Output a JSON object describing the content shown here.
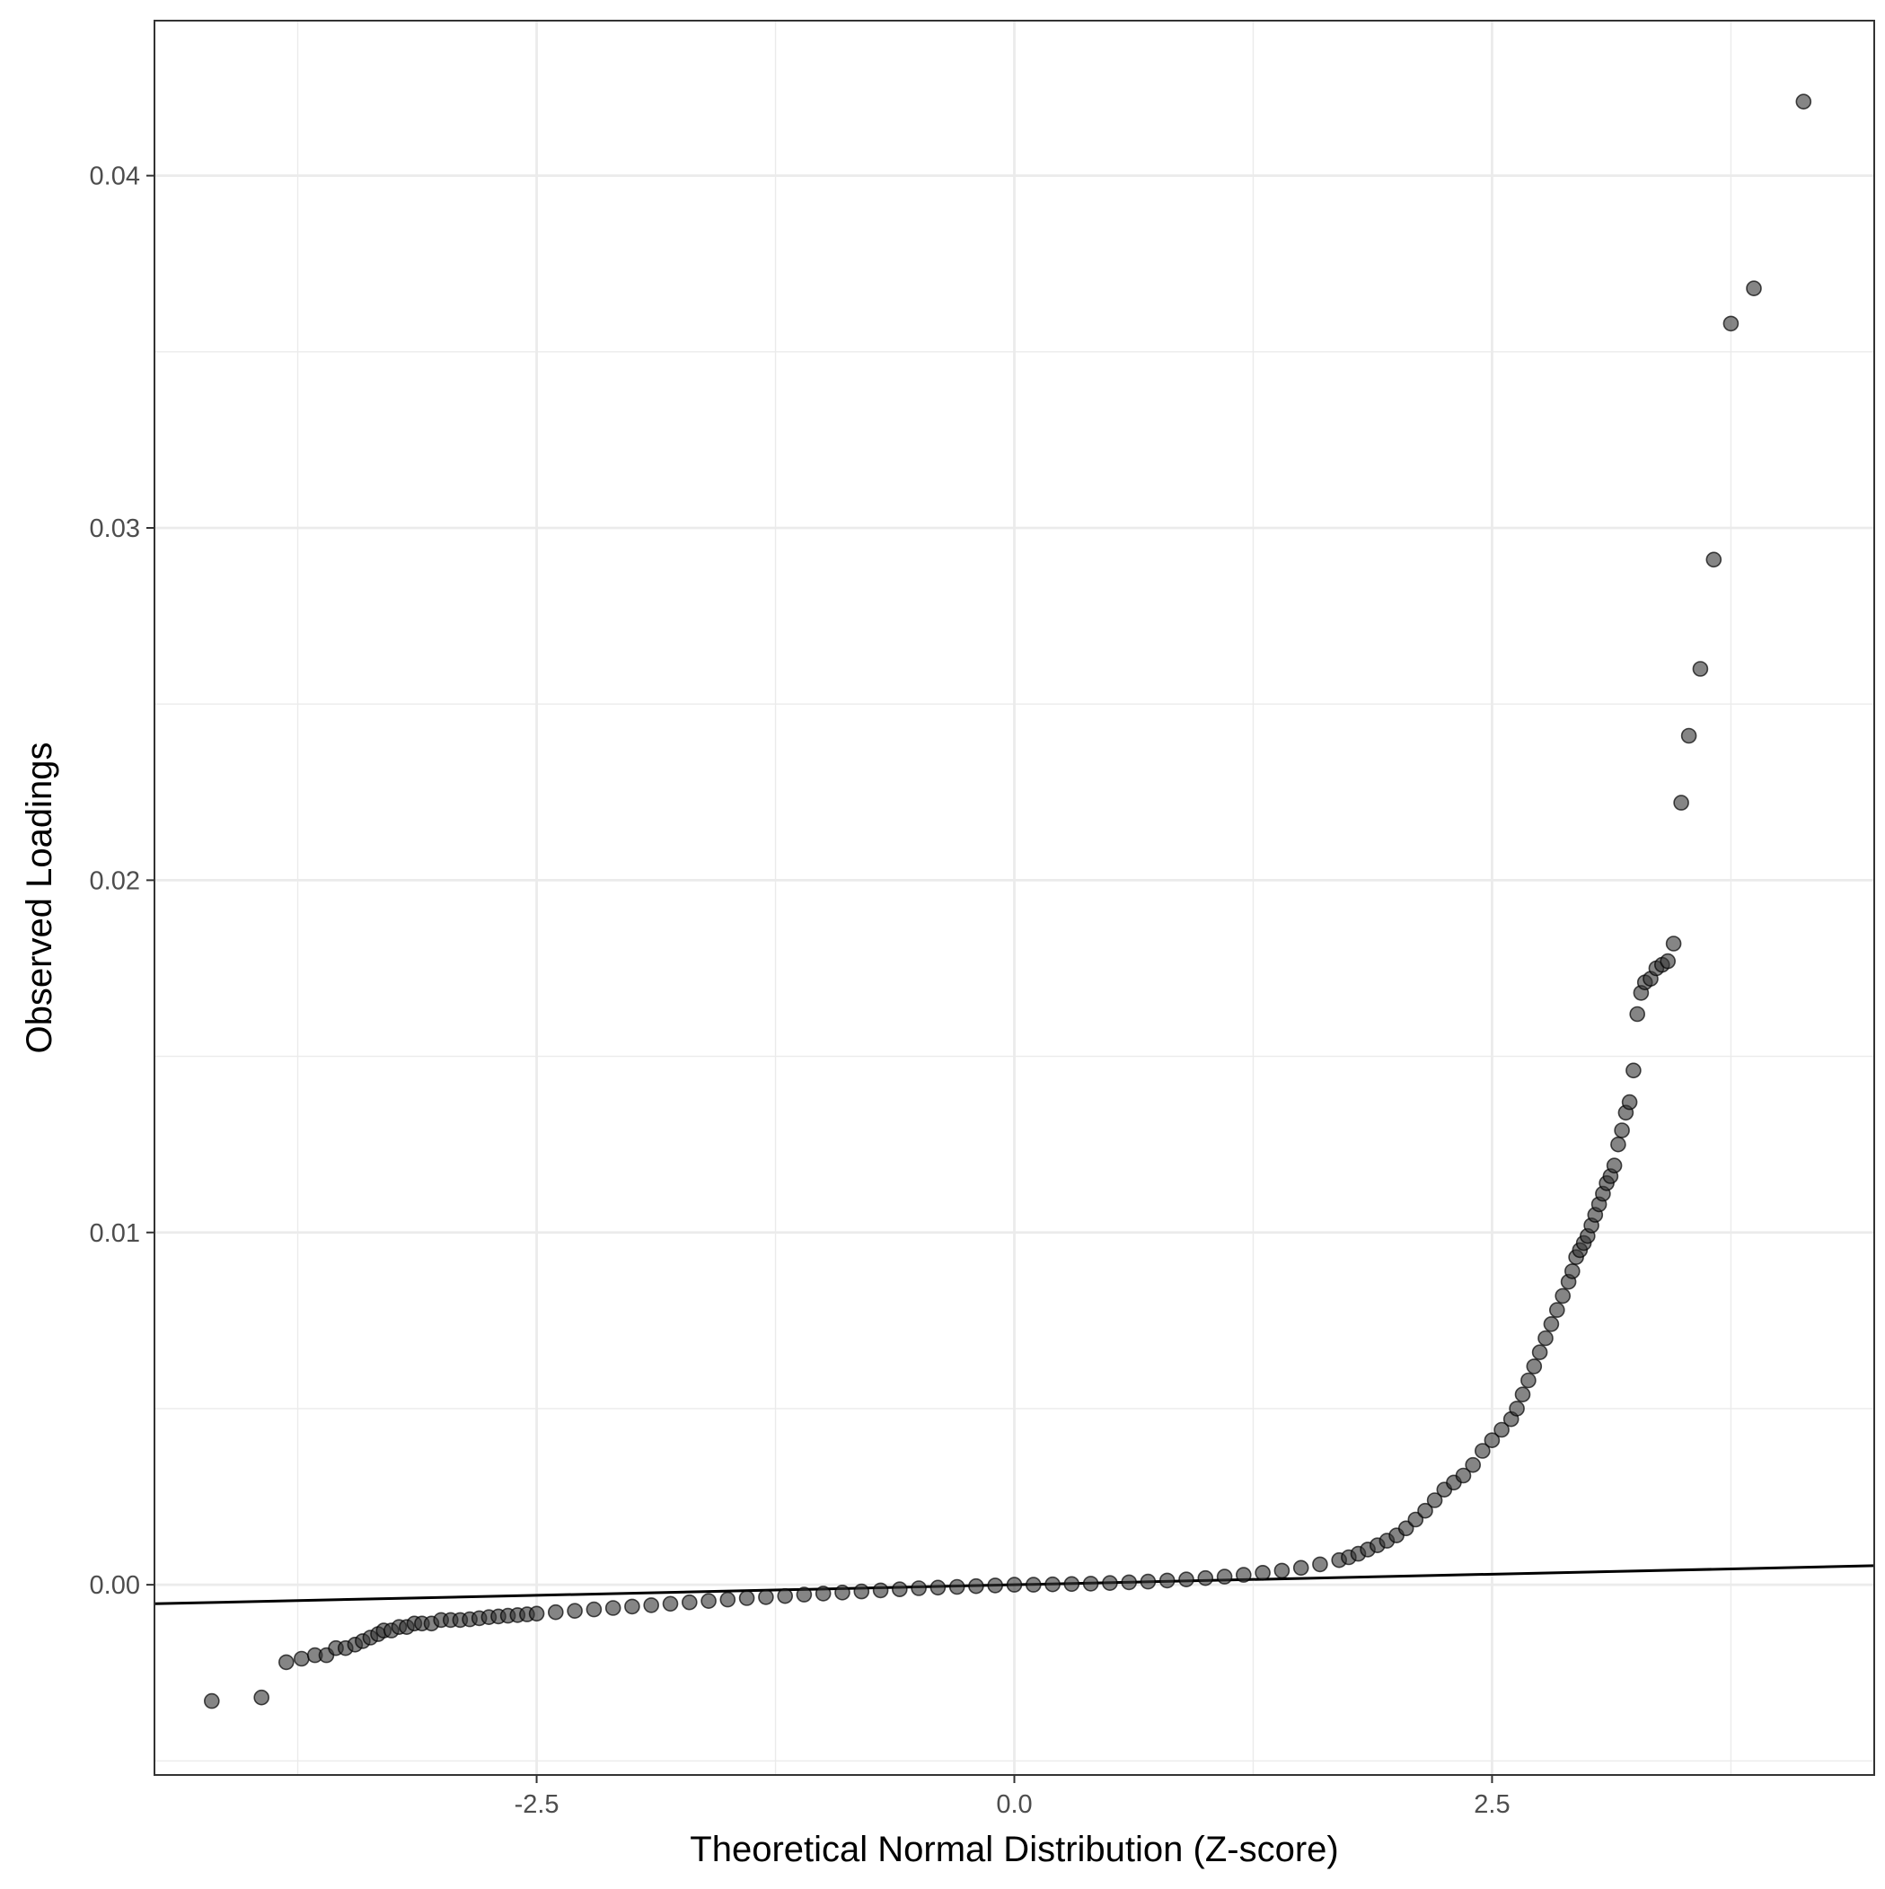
{
  "chart_data": {
    "type": "scatter",
    "title": "",
    "xlabel": "Theoretical Normal Distribution (Z-score)",
    "ylabel": "Observed Loadings",
    "xlim": [
      -4.5,
      4.5
    ],
    "ylim": [
      -0.0054,
      0.0444
    ],
    "x_ticks": [
      -2.5,
      0.0,
      2.5
    ],
    "x_tick_labels": [
      "-2.5",
      "0.0",
      "2.5"
    ],
    "y_ticks": [
      0.0,
      0.01,
      0.02,
      0.03,
      0.04
    ],
    "y_tick_labels": [
      "0.00",
      "0.01",
      "0.02",
      "0.03",
      "0.04"
    ],
    "grid": true,
    "reference_line": {
      "type": "qq-line",
      "slope": 0.00012,
      "intercept": 0.0
    },
    "point_color": "#333333",
    "point_opacity": 0.6,
    "series": [
      {
        "points": [
          [
            -4.2,
            -0.0033
          ],
          [
            -3.94,
            -0.0032
          ],
          [
            -3.81,
            -0.0022
          ],
          [
            -3.73,
            -0.0021
          ],
          [
            -3.66,
            -0.002
          ],
          [
            -3.6,
            -0.002
          ],
          [
            -3.55,
            -0.0018
          ],
          [
            -3.5,
            -0.0018
          ],
          [
            -3.45,
            -0.0017
          ],
          [
            -3.41,
            -0.0016
          ],
          [
            -3.37,
            -0.0015
          ],
          [
            -3.33,
            -0.0014
          ],
          [
            -3.3,
            -0.0013
          ],
          [
            -3.26,
            -0.0013
          ],
          [
            -3.22,
            -0.0012
          ],
          [
            -3.18,
            -0.0012
          ],
          [
            -3.14,
            -0.0011
          ],
          [
            -3.1,
            -0.0011
          ],
          [
            -3.05,
            -0.0011
          ],
          [
            -3.0,
            -0.001
          ],
          [
            -2.95,
            -0.001
          ],
          [
            -2.9,
            -0.001
          ],
          [
            -2.85,
            -0.00098
          ],
          [
            -2.8,
            -0.00095
          ],
          [
            -2.75,
            -0.00092
          ],
          [
            -2.7,
            -0.0009
          ],
          [
            -2.65,
            -0.00088
          ],
          [
            -2.6,
            -0.00086
          ],
          [
            -2.55,
            -0.00084
          ],
          [
            -2.5,
            -0.00082
          ],
          [
            -2.4,
            -0.00078
          ],
          [
            -2.3,
            -0.00074
          ],
          [
            -2.2,
            -0.0007
          ],
          [
            -2.1,
            -0.00066
          ],
          [
            -2.0,
            -0.00062
          ],
          [
            -1.9,
            -0.00058
          ],
          [
            -1.8,
            -0.00054
          ],
          [
            -1.7,
            -0.0005
          ],
          [
            -1.6,
            -0.00046
          ],
          [
            -1.5,
            -0.00042
          ],
          [
            -1.4,
            -0.00038
          ],
          [
            -1.3,
            -0.00035
          ],
          [
            -1.2,
            -0.00032
          ],
          [
            -1.1,
            -0.00028
          ],
          [
            -1.0,
            -0.00025
          ],
          [
            -0.9,
            -0.00022
          ],
          [
            -0.8,
            -0.00019
          ],
          [
            -0.7,
            -0.00016
          ],
          [
            -0.6,
            -0.00013
          ],
          [
            -0.5,
            -0.0001
          ],
          [
            -0.4,
            -8e-05
          ],
          [
            -0.3,
            -6e-05
          ],
          [
            -0.2,
            -4e-05
          ],
          [
            -0.1,
            -2e-05
          ],
          [
            0.0,
            0.0
          ],
          [
            0.1,
            0.0
          ],
          [
            0.2,
            1e-05
          ],
          [
            0.3,
            2e-05
          ],
          [
            0.4,
            3e-05
          ],
          [
            0.5,
            5e-05
          ],
          [
            0.6,
            7e-05
          ],
          [
            0.7,
            9e-05
          ],
          [
            0.8,
            0.00012
          ],
          [
            0.9,
            0.00015
          ],
          [
            1.0,
            0.00019
          ],
          [
            1.1,
            0.00023
          ],
          [
            1.2,
            0.00028
          ],
          [
            1.3,
            0.00034
          ],
          [
            1.4,
            0.0004
          ],
          [
            1.5,
            0.00048
          ],
          [
            1.6,
            0.00058
          ],
          [
            1.7,
            0.0007
          ],
          [
            1.75,
            0.00078
          ],
          [
            1.8,
            0.00088
          ],
          [
            1.85,
            0.001
          ],
          [
            1.9,
            0.00112
          ],
          [
            1.95,
            0.00125
          ],
          [
            2.0,
            0.0014
          ],
          [
            2.05,
            0.0016
          ],
          [
            2.1,
            0.00185
          ],
          [
            2.15,
            0.0021
          ],
          [
            2.2,
            0.0024
          ],
          [
            2.25,
            0.0027
          ],
          [
            2.3,
            0.0029
          ],
          [
            2.35,
            0.0031
          ],
          [
            2.4,
            0.0034
          ],
          [
            2.45,
            0.0038
          ],
          [
            2.5,
            0.0041
          ],
          [
            2.55,
            0.0044
          ],
          [
            2.6,
            0.0047
          ],
          [
            2.63,
            0.005
          ],
          [
            2.66,
            0.0054
          ],
          [
            2.69,
            0.0058
          ],
          [
            2.72,
            0.0062
          ],
          [
            2.75,
            0.0066
          ],
          [
            2.78,
            0.007
          ],
          [
            2.81,
            0.0074
          ],
          [
            2.84,
            0.0078
          ],
          [
            2.87,
            0.0082
          ],
          [
            2.9,
            0.0086
          ],
          [
            2.92,
            0.0089
          ],
          [
            2.94,
            0.0093
          ],
          [
            2.96,
            0.0095
          ],
          [
            2.98,
            0.0097
          ],
          [
            3.0,
            0.0099
          ],
          [
            3.02,
            0.0102
          ],
          [
            3.04,
            0.0105
          ],
          [
            3.06,
            0.0108
          ],
          [
            3.08,
            0.0111
          ],
          [
            3.1,
            0.0114
          ],
          [
            3.12,
            0.0116
          ],
          [
            3.14,
            0.0119
          ],
          [
            3.16,
            0.0125
          ],
          [
            3.18,
            0.0129
          ],
          [
            3.2,
            0.0134
          ],
          [
            3.22,
            0.0137
          ],
          [
            3.24,
            0.0146
          ],
          [
            3.26,
            0.0162
          ],
          [
            3.28,
            0.0168
          ],
          [
            3.3,
            0.0171
          ],
          [
            3.33,
            0.0172
          ],
          [
            3.36,
            0.0175
          ],
          [
            3.39,
            0.0176
          ],
          [
            3.42,
            0.0177
          ],
          [
            3.45,
            0.0182
          ],
          [
            3.49,
            0.0222
          ],
          [
            3.53,
            0.0241
          ],
          [
            3.59,
            0.026
          ],
          [
            3.66,
            0.0291
          ],
          [
            3.75,
            0.0358
          ],
          [
            3.87,
            0.0368
          ],
          [
            4.13,
            0.0421
          ]
        ]
      }
    ]
  }
}
